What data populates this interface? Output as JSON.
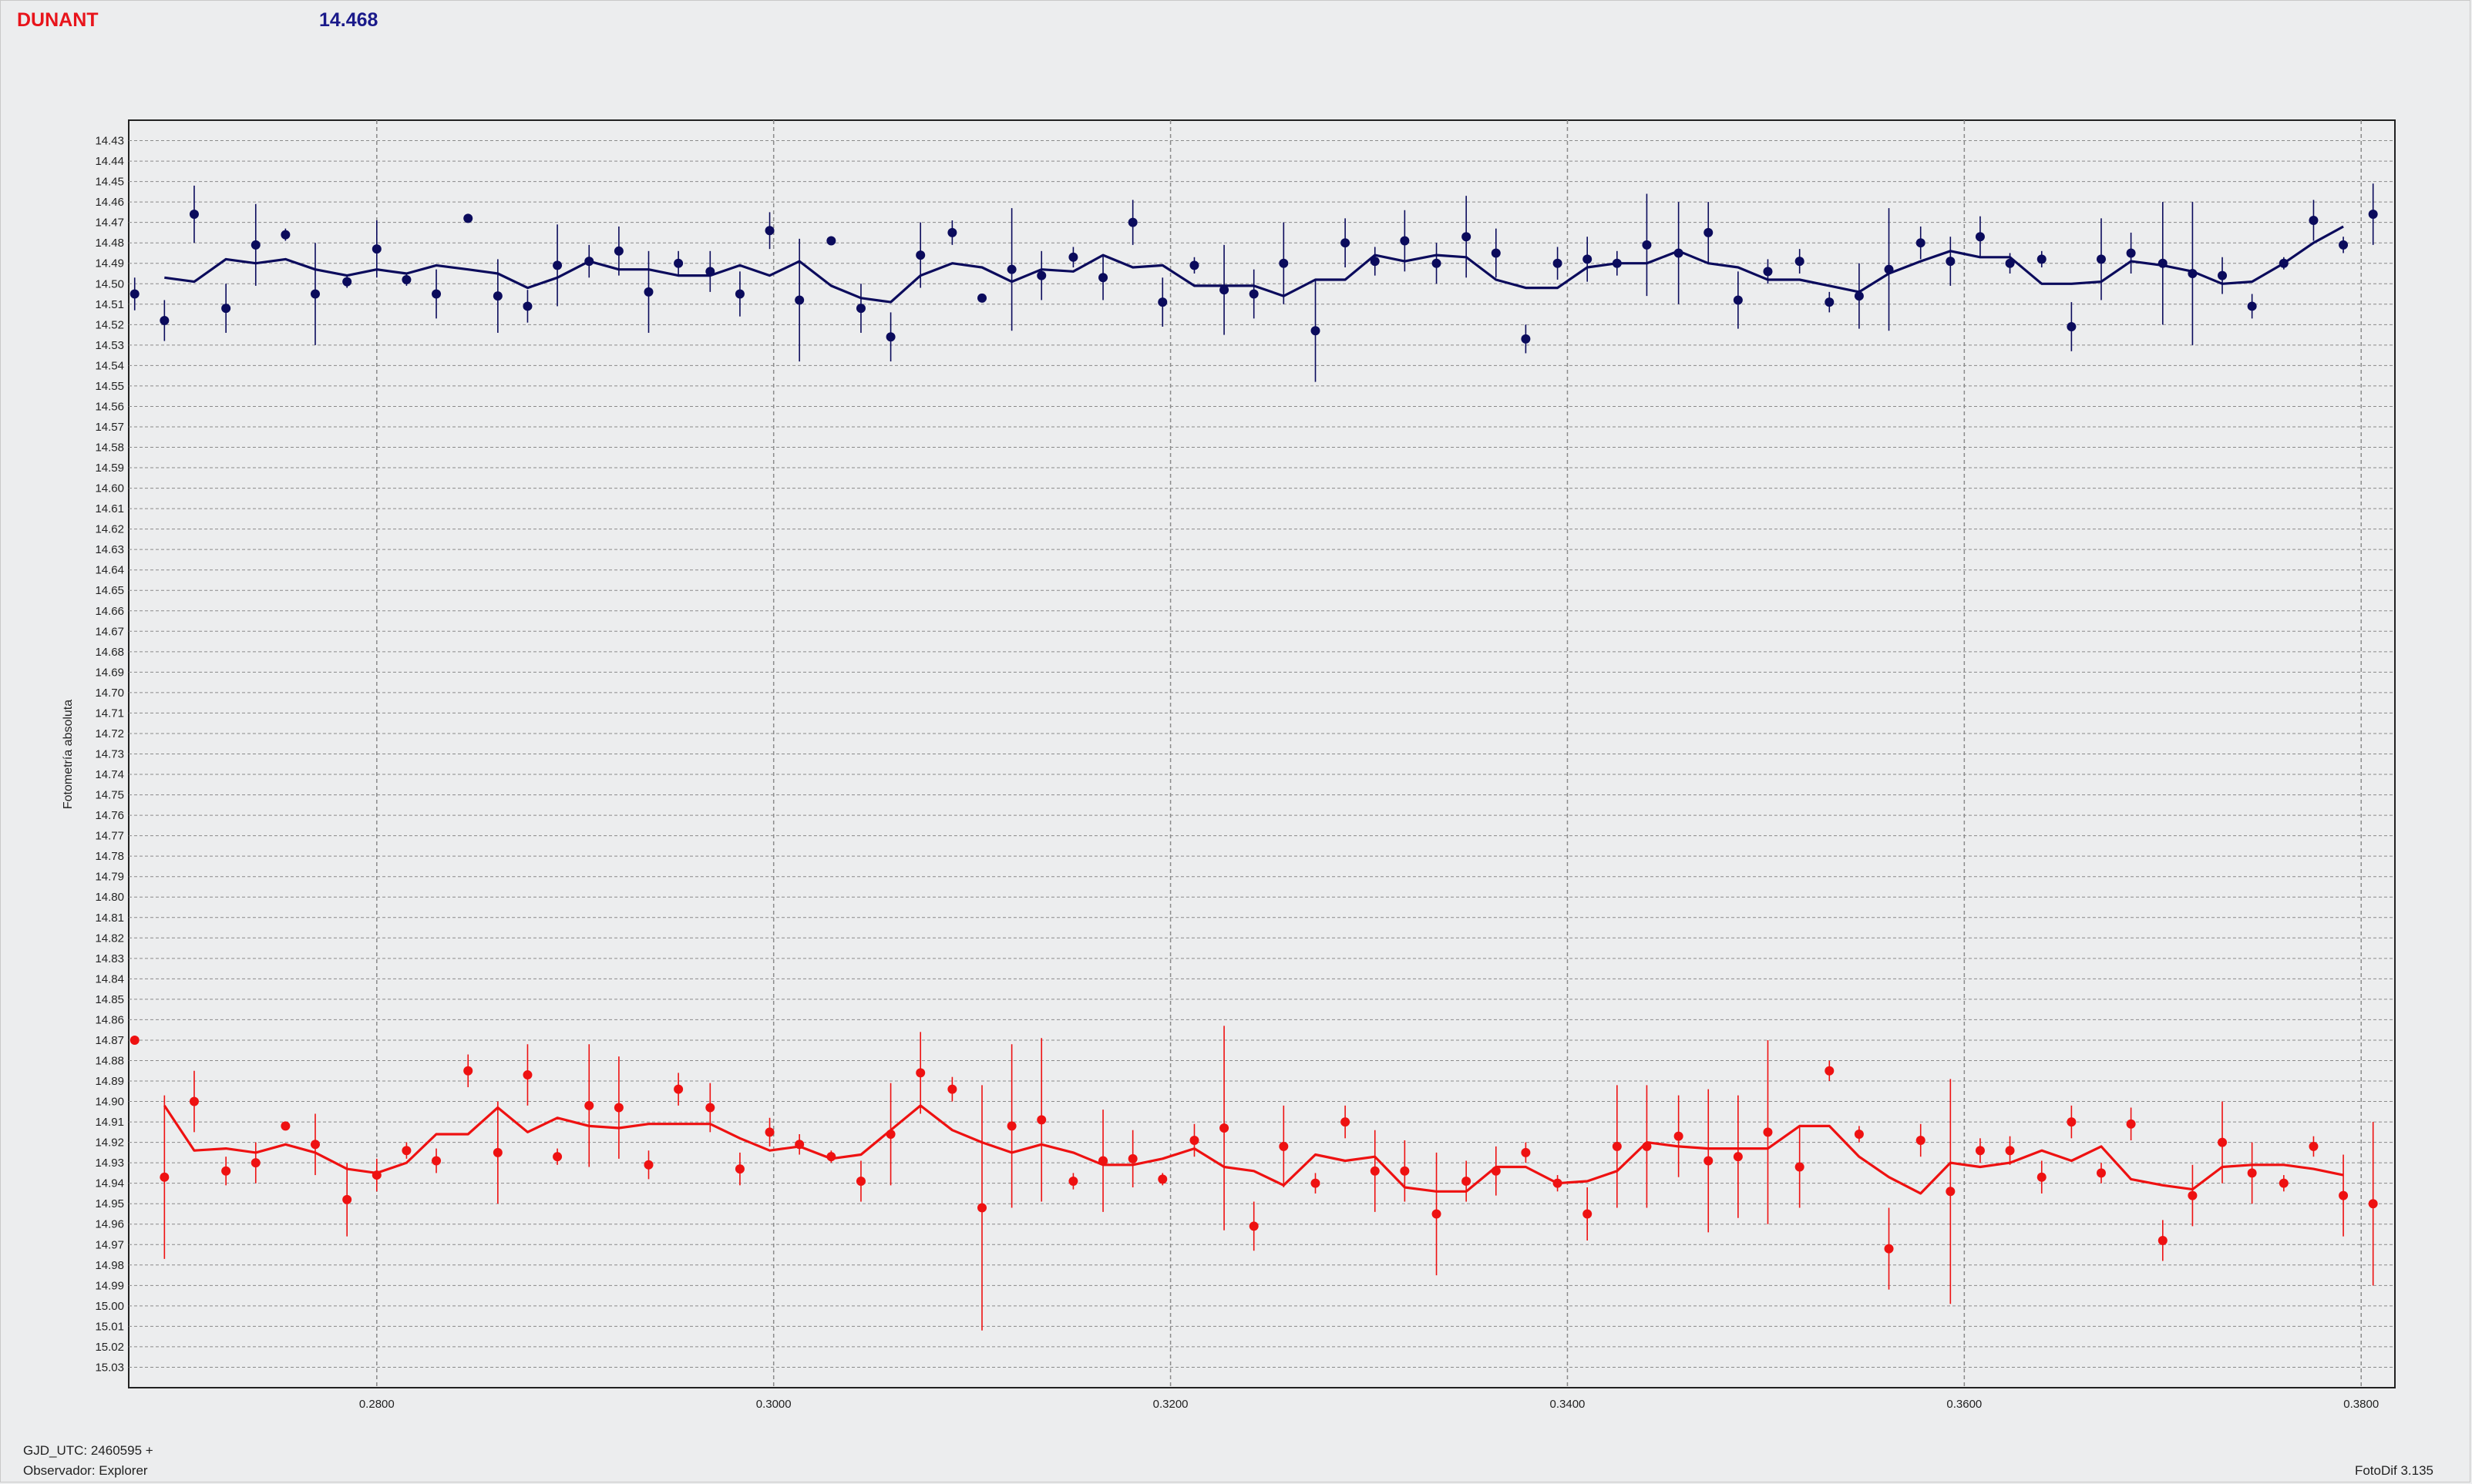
{
  "header": {
    "target_name": "DUNANT",
    "target_magnitude": "14.468"
  },
  "footer": {
    "gjd_label": "GJD_UTC: 2460595 +",
    "observer_label": "Observador: Explorer",
    "software_label": "FotoDif 3.135"
  },
  "colors": {
    "upper_series": "#0b0b5c",
    "lower_series": "#ee1111",
    "target_name": "#e8141b",
    "target_magnitude": "#1a1a8a"
  },
  "chart_data": {
    "type": "scatter",
    "title": "",
    "xlabel": "",
    "ylabel": "Fotometría absoluta",
    "xlim": [
      0.2675,
      0.3817
    ],
    "ylim": [
      14.42,
      15.04
    ],
    "y_inverted": true,
    "grid": true,
    "x_ticks": [
      "0.2800",
      "0.3000",
      "0.3200",
      "0.3400",
      "0.3600",
      "0.3800"
    ],
    "y_ticks": [
      "14.43",
      "14.44",
      "14.45",
      "14.46",
      "14.47",
      "14.48",
      "14.49",
      "14.50",
      "14.51",
      "14.52",
      "14.53",
      "14.54",
      "14.55",
      "14.56",
      "14.57",
      "14.58",
      "14.59",
      "14.60",
      "14.61",
      "14.62",
      "14.63",
      "14.64",
      "14.65",
      "14.66",
      "14.67",
      "14.68",
      "14.69",
      "14.70",
      "14.71",
      "14.72",
      "14.73",
      "14.74",
      "14.75",
      "14.76",
      "14.77",
      "14.78",
      "14.79",
      "14.80",
      "14.81",
      "14.82",
      "14.83",
      "14.84",
      "14.85",
      "14.86",
      "14.87",
      "14.88",
      "14.89",
      "14.90",
      "14.91",
      "14.92",
      "14.93",
      "14.94",
      "14.95",
      "14.96",
      "14.97",
      "14.98",
      "14.99",
      "15.00",
      "15.01",
      "15.02",
      "15.03"
    ],
    "series": [
      {
        "color": "#0b0b5c",
        "x": [
          0.2678,
          0.2693,
          0.2708,
          0.2724,
          0.2739,
          0.2754,
          0.2769,
          0.2785,
          0.28,
          0.2815,
          0.283,
          0.2846,
          0.2861,
          0.2876,
          0.2891,
          0.2907,
          0.2922,
          0.2937,
          0.2952,
          0.2968,
          0.2983,
          0.2998,
          0.3013,
          0.3029,
          0.3044,
          0.3059,
          0.3074,
          0.309,
          0.3105,
          0.312,
          0.3135,
          0.3151,
          0.3166,
          0.3181,
          0.3196,
          0.3212,
          0.3227,
          0.3242,
          0.3257,
          0.3273,
          0.3288,
          0.3303,
          0.3318,
          0.3334,
          0.3349,
          0.3364,
          0.3379,
          0.3395,
          0.341,
          0.3425,
          0.344,
          0.3456,
          0.3471,
          0.3486,
          0.3501,
          0.3517,
          0.3532,
          0.3547,
          0.3562,
          0.3578,
          0.3593,
          0.3608,
          0.3623,
          0.3639,
          0.3654,
          0.3669,
          0.3684,
          0.37,
          0.3715,
          0.373,
          0.3745,
          0.3761,
          0.3776,
          0.3791,
          0.3806
        ],
        "y": [
          14.505,
          14.518,
          14.466,
          14.512,
          14.481,
          14.476,
          14.505,
          14.499,
          14.483,
          14.498,
          14.505,
          14.468,
          14.506,
          14.511,
          14.491,
          14.489,
          14.484,
          14.504,
          14.49,
          14.494,
          14.505,
          14.474,
          14.508,
          14.479,
          14.512,
          14.526,
          14.486,
          14.475,
          14.507,
          14.493,
          14.496,
          14.487,
          14.497,
          14.47,
          14.509,
          14.491,
          14.503,
          14.505,
          14.49,
          14.523,
          14.48,
          14.489,
          14.479,
          14.49,
          14.477,
          14.485,
          14.527,
          14.49,
          14.488,
          14.49,
          14.481,
          14.485,
          14.475,
          14.508,
          14.494,
          14.489,
          14.509,
          14.506,
          14.493,
          14.48,
          14.489,
          14.477,
          14.49,
          14.488,
          14.521,
          14.488,
          14.485,
          14.49,
          14.495,
          14.496,
          14.511,
          14.49,
          14.469,
          14.481,
          14.466
        ],
        "error": [
          0.008,
          0.01,
          0.014,
          0.012,
          0.02,
          0.003,
          0.025,
          0.003,
          0.014,
          0.003,
          0.012,
          0.002,
          0.018,
          0.008,
          0.02,
          0.008,
          0.012,
          0.02,
          0.006,
          0.01,
          0.011,
          0.009,
          0.03,
          0.002,
          0.012,
          0.012,
          0.016,
          0.006,
          0.002,
          0.03,
          0.012,
          0.005,
          0.011,
          0.011,
          0.012,
          0.004,
          0.022,
          0.012,
          0.02,
          0.025,
          0.012,
          0.007,
          0.015,
          0.01,
          0.02,
          0.012,
          0.007,
          0.008,
          0.011,
          0.006,
          0.025,
          0.025,
          0.015,
          0.014,
          0.006,
          0.006,
          0.005,
          0.016,
          0.03,
          0.008,
          0.012,
          0.01,
          0.005,
          0.004,
          0.012,
          0.02,
          0.01,
          0.03,
          0.035,
          0.009,
          0.006,
          0.003,
          0.01,
          0.004,
          0.015
        ],
        "line_x": [
          0.2693,
          0.2708,
          0.2724,
          0.2739,
          0.2754,
          0.2769,
          0.2785,
          0.28,
          0.2815,
          0.283,
          0.2846,
          0.2861,
          0.2876,
          0.2891,
          0.2907,
          0.2922,
          0.2937,
          0.2952,
          0.2968,
          0.2983,
          0.2998,
          0.3013,
          0.3029,
          0.3044,
          0.3059,
          0.3074,
          0.309,
          0.3105,
          0.312,
          0.3135,
          0.3151,
          0.3166,
          0.3181,
          0.3196,
          0.3212,
          0.3227,
          0.3242,
          0.3257,
          0.3273,
          0.3288,
          0.3303,
          0.3318,
          0.3334,
          0.3349,
          0.3364,
          0.3379,
          0.3395,
          0.341,
          0.3425,
          0.344,
          0.3456,
          0.3471,
          0.3486,
          0.3501,
          0.3517,
          0.3532,
          0.3547,
          0.3562,
          0.3578,
          0.3593,
          0.3608,
          0.3623,
          0.3639,
          0.3654,
          0.3669,
          0.3684,
          0.37,
          0.3715,
          0.373,
          0.3745,
          0.3761,
          0.3776,
          0.3791
        ],
        "line_y": [
          14.497,
          14.499,
          14.488,
          14.49,
          14.488,
          14.493,
          14.496,
          14.493,
          14.495,
          14.491,
          14.493,
          14.495,
          14.502,
          14.497,
          14.489,
          14.493,
          14.493,
          14.496,
          14.496,
          14.491,
          14.496,
          14.489,
          14.501,
          14.507,
          14.509,
          14.496,
          14.49,
          14.492,
          14.499,
          14.493,
          14.494,
          14.486,
          14.492,
          14.491,
          14.501,
          14.501,
          14.501,
          14.506,
          14.498,
          14.498,
          14.486,
          14.489,
          14.486,
          14.487,
          14.498,
          14.502,
          14.502,
          14.492,
          14.49,
          14.49,
          14.484,
          14.49,
          14.492,
          14.498,
          14.498,
          14.501,
          14.504,
          14.495,
          14.489,
          14.484,
          14.487,
          14.487,
          14.5,
          14.5,
          14.499,
          14.489,
          14.491,
          14.494,
          14.5,
          14.499,
          14.49,
          14.48,
          14.472
        ]
      },
      {
        "color": "#ee1111",
        "x": [
          0.2678,
          0.2693,
          0.2708,
          0.2724,
          0.2739,
          0.2754,
          0.2769,
          0.2785,
          0.28,
          0.2815,
          0.283,
          0.2846,
          0.2861,
          0.2876,
          0.2891,
          0.2907,
          0.2922,
          0.2937,
          0.2952,
          0.2968,
          0.2983,
          0.2998,
          0.3013,
          0.3029,
          0.3044,
          0.3059,
          0.3074,
          0.309,
          0.3105,
          0.312,
          0.3135,
          0.3151,
          0.3166,
          0.3181,
          0.3196,
          0.3212,
          0.3227,
          0.3242,
          0.3257,
          0.3273,
          0.3288,
          0.3303,
          0.3318,
          0.3334,
          0.3349,
          0.3364,
          0.3379,
          0.3395,
          0.341,
          0.3425,
          0.344,
          0.3456,
          0.3471,
          0.3486,
          0.3501,
          0.3517,
          0.3532,
          0.3547,
          0.3562,
          0.3578,
          0.3593,
          0.3608,
          0.3623,
          0.3639,
          0.3654,
          0.3669,
          0.3684,
          0.37,
          0.3715,
          0.373,
          0.3745,
          0.3761,
          0.3776,
          0.3791,
          0.3806
        ],
        "y": [
          14.87,
          14.937,
          14.9,
          14.934,
          14.93,
          14.912,
          14.921,
          14.948,
          14.936,
          14.924,
          14.929,
          14.885,
          14.925,
          14.887,
          14.927,
          14.902,
          14.903,
          14.931,
          14.894,
          14.903,
          14.933,
          14.915,
          14.921,
          14.927,
          14.939,
          14.916,
          14.886,
          14.894,
          14.952,
          14.912,
          14.909,
          14.939,
          14.929,
          14.928,
          14.938,
          14.919,
          14.913,
          14.961,
          14.922,
          14.94,
          14.91,
          14.934,
          14.934,
          14.955,
          14.939,
          14.934,
          14.925,
          14.94,
          14.955,
          14.922,
          14.922,
          14.917,
          14.929,
          14.927,
          14.915,
          14.932,
          14.885,
          14.916,
          14.972,
          14.919,
          14.944,
          14.924,
          14.924,
          14.937,
          14.91,
          14.935,
          14.911,
          14.968,
          14.946,
          14.92,
          14.935,
          14.94,
          14.922,
          14.946,
          14.95
        ],
        "error": [
          0.002,
          0.04,
          0.015,
          0.007,
          0.01,
          0.002,
          0.015,
          0.018,
          0.008,
          0.004,
          0.006,
          0.008,
          0.025,
          0.015,
          0.004,
          0.03,
          0.025,
          0.007,
          0.008,
          0.012,
          0.008,
          0.007,
          0.005,
          0.003,
          0.01,
          0.025,
          0.02,
          0.006,
          0.06,
          0.04,
          0.04,
          0.004,
          0.025,
          0.014,
          0.003,
          0.008,
          0.05,
          0.012,
          0.02,
          0.005,
          0.008,
          0.02,
          0.015,
          0.03,
          0.01,
          0.012,
          0.005,
          0.004,
          0.013,
          0.03,
          0.03,
          0.02,
          0.035,
          0.03,
          0.045,
          0.02,
          0.005,
          0.004,
          0.02,
          0.008,
          0.055,
          0.006,
          0.007,
          0.008,
          0.008,
          0.005,
          0.008,
          0.01,
          0.015,
          0.02,
          0.015,
          0.004,
          0.005,
          0.02,
          0.04
        ],
        "line_x": [
          0.2693,
          0.2708,
          0.2724,
          0.2739,
          0.2754,
          0.2769,
          0.2785,
          0.28,
          0.2815,
          0.283,
          0.2846,
          0.2861,
          0.2876,
          0.2891,
          0.2907,
          0.2922,
          0.2937,
          0.2952,
          0.2968,
          0.2983,
          0.2998,
          0.3013,
          0.3029,
          0.3044,
          0.3059,
          0.3074,
          0.309,
          0.3105,
          0.312,
          0.3135,
          0.3151,
          0.3166,
          0.3181,
          0.3196,
          0.3212,
          0.3227,
          0.3242,
          0.3257,
          0.3273,
          0.3288,
          0.3303,
          0.3318,
          0.3334,
          0.3349,
          0.3364,
          0.3379,
          0.3395,
          0.341,
          0.3425,
          0.344,
          0.3456,
          0.3471,
          0.3486,
          0.3501,
          0.3517,
          0.3532,
          0.3547,
          0.3562,
          0.3578,
          0.3593,
          0.3608,
          0.3623,
          0.3639,
          0.3654,
          0.3669,
          0.3684,
          0.37,
          0.3715,
          0.373,
          0.3745,
          0.3761,
          0.3776,
          0.3791
        ],
        "line_y": [
          14.902,
          14.924,
          14.923,
          14.925,
          14.921,
          14.925,
          14.933,
          14.935,
          14.93,
          14.916,
          14.916,
          14.903,
          14.915,
          14.908,
          14.912,
          14.913,
          14.911,
          14.911,
          14.911,
          14.918,
          14.924,
          14.922,
          14.928,
          14.926,
          14.914,
          14.902,
          14.914,
          14.92,
          14.925,
          14.921,
          14.925,
          14.931,
          14.931,
          14.928,
          14.923,
          14.932,
          14.934,
          14.941,
          14.926,
          14.929,
          14.927,
          14.942,
          14.944,
          14.944,
          14.932,
          14.932,
          14.94,
          14.939,
          14.934,
          14.92,
          14.922,
          14.923,
          14.923,
          14.923,
          14.912,
          14.912,
          14.927,
          14.937,
          14.945,
          14.93,
          14.932,
          14.93,
          14.924,
          14.929,
          14.922,
          14.938,
          14.941,
          14.943,
          14.932,
          14.931,
          14.931,
          14.933,
          14.936
        ]
      }
    ]
  }
}
